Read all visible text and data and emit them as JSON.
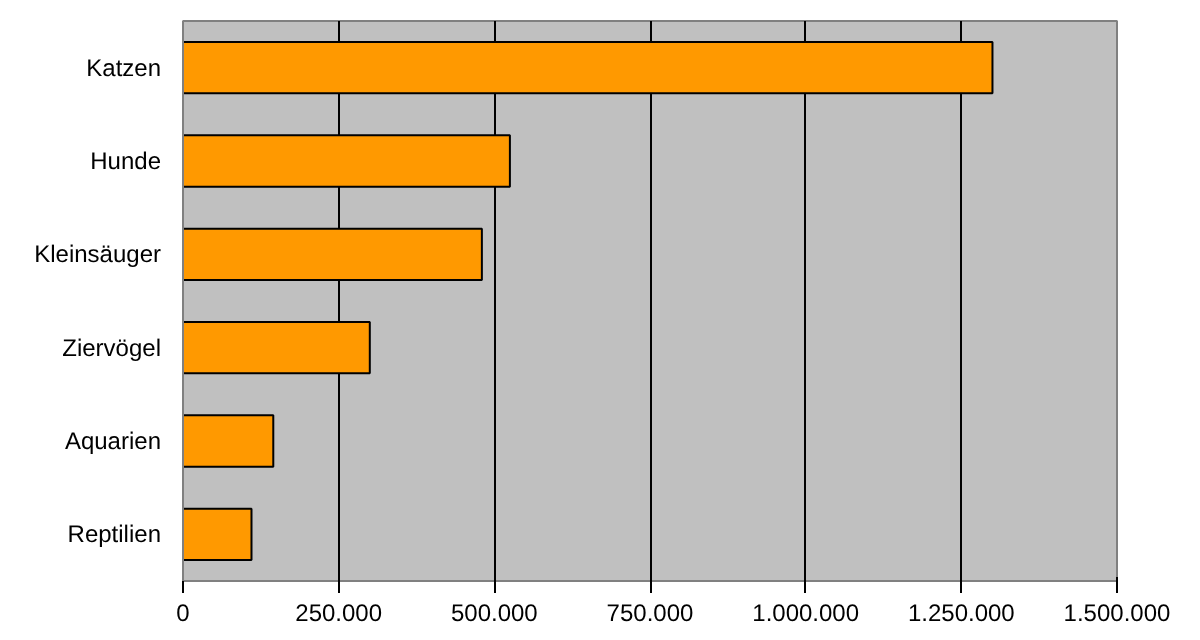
{
  "chart_data": {
    "type": "bar",
    "orientation": "horizontal",
    "categories": [
      "Katzen",
      "Hunde",
      "Kleinsäuger",
      "Ziervögel",
      "Aquarien",
      "Reptilien"
    ],
    "values": [
      1300000,
      525000,
      480000,
      300000,
      145000,
      110000
    ],
    "color": "#ff9900",
    "xlim": [
      0,
      1500000
    ],
    "xticks": [
      0,
      {
        "value": 250000,
        "label": "250.000"
      },
      {
        "value": 500000,
        "label": "500.000"
      },
      {
        "value": 750000,
        "label": "750.000"
      },
      {
        "value": 1000000,
        "label": "1.000.000"
      },
      {
        "value": 1250000,
        "label": "1.250.000"
      },
      {
        "value": 1500000,
        "label": "1.500.000"
      }
    ],
    "grid": "x"
  }
}
